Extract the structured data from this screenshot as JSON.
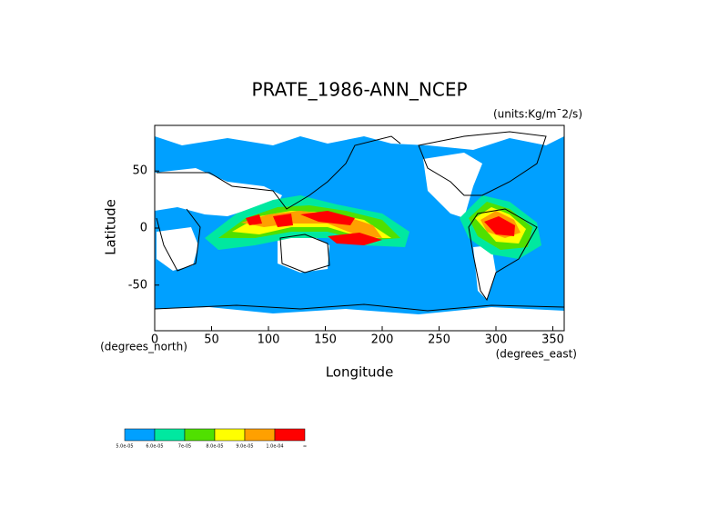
{
  "chart_data": {
    "type": "map",
    "title": "PRATE_1986-ANN_NCEP",
    "units": "(units:Kg/m¯2/s)",
    "x_label": "Longitude",
    "y_label": "Latitude",
    "x_unit_label": "(degrees_east)",
    "y_unit_label": "(degrees_north)",
    "xlim": [
      0,
      360
    ],
    "xticks": [
      0,
      50,
      100,
      150,
      200,
      250,
      300,
      350
    ],
    "ylim": [
      -90,
      90
    ],
    "yticks": [
      -50,
      0,
      50
    ],
    "colorbar": {
      "colors": [
        "#00a0ff",
        "#00e8a0",
        "#50e000",
        "#ffff00",
        "#ffa000",
        "#ff0000"
      ],
      "labels": [
        "5.0e-05",
        "6.0e-05",
        "7e-05",
        "8.0e-05",
        "9.0e-05",
        "1.0e-04",
        "∞"
      ]
    }
  }
}
